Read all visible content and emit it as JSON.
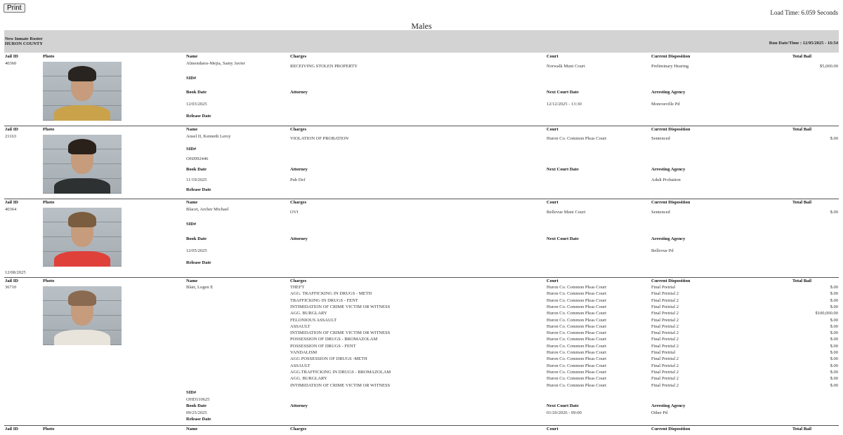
{
  "print_label": "Print",
  "load_time": "Load Time: 6.059 Seconds",
  "title": "Males",
  "band": {
    "line1": "New Inmate Roster",
    "line2": "HURON COUNTY",
    "run_datetime": "Run Date/Time : 12/05/2025 - 16:54"
  },
  "labels": {
    "jail_id": "Jail ID",
    "photo": "Photo",
    "name": "Name",
    "charges": "Charges",
    "court": "Court",
    "disposition": "Current Disposition",
    "total_bail": "Total Bail",
    "sid": "SID#",
    "book_date": "Book Date",
    "attorney": "Attorney",
    "next_court_date": "Next Court Date",
    "arresting_agency": "Arresting Agency",
    "release_date": "Release Date"
  },
  "records": [
    {
      "jail_id": "40360",
      "name": "Almendares-Mejia, Samy Javier",
      "sid": "",
      "book_date": "12/03/2025",
      "attorney": "",
      "next_court_date": "12/12/2025 - 13:30",
      "arresting_agency": "Monroeville Pd",
      "release_date": "",
      "photo": {
        "hair": "#2a2420",
        "shirt": "#c9a24a"
      },
      "charges": [
        {
          "charge": "RECEIVING STOLEN PROPERTY",
          "court": "Norwalk Muni Court",
          "disposition": "Preliminary Hearing",
          "bail": "$5,000.00"
        }
      ]
    },
    {
      "jail_id": "21163",
      "name": "Ansel II, Kenneth Leroy",
      "sid": "OHJ092446",
      "book_date": "11/19/2025",
      "attorney": "Pub Def",
      "next_court_date": "",
      "arresting_agency": "Adult Probation",
      "release_date": "",
      "photo": {
        "hair": "#2b211b",
        "shirt": "#2e3131"
      },
      "charges": [
        {
          "charge": "VIOLATION OF PROBATION",
          "court": "Huron Co. Common Pleas Court",
          "disposition": "Sentenced",
          "bail": "$.00"
        }
      ]
    },
    {
      "jail_id": "40364",
      "name": "Blacet, Archer Michael",
      "sid": "",
      "book_date": "12/05/2025",
      "attorney": "",
      "next_court_date": "",
      "arresting_agency": "Bellevue Pd",
      "release_date": "12/08/2025",
      "photo": {
        "hair": "#7a5c3e",
        "shirt": "#e0403a"
      },
      "charges": [
        {
          "charge": "OVI",
          "court": "Bellevue Muni Court",
          "disposition": "Sentenced",
          "bail": "$.00"
        }
      ]
    },
    {
      "jail_id": "36710",
      "name": "Blair, Logen E",
      "sid": "OHD110625",
      "book_date": "09/25/2025",
      "attorney": "",
      "next_court_date": "01/20/2026 - 09:00",
      "arresting_agency": "Other Pd",
      "release_date": "",
      "photo": {
        "hair": "#8a6a50",
        "shirt": "#e8e4dc"
      },
      "charges": [
        {
          "charge": "THEFT",
          "court": "Huron Co. Common Pleas Court",
          "disposition": "Final Pretrial",
          "bail": "$.00"
        },
        {
          "charge": "AGG. TRAFFICKING IN DRUGS - METH",
          "court": "Huron Co. Common Pleas Court",
          "disposition": "Final Pretrial 2",
          "bail": "$.00"
        },
        {
          "charge": "TRAFFICKING IN DRUGS - FENT",
          "court": "Huron Co. Common Pleas Court",
          "disposition": "Final Pretrial 2",
          "bail": "$.00"
        },
        {
          "charge": "INTIMIDATION OF CRIME VICTIM OR WITNESS",
          "court": "Huron Co. Common Pleas Court",
          "disposition": "Final Pretrial 2",
          "bail": "$.00"
        },
        {
          "charge": "AGG. BURGLARY",
          "court": "Huron Co. Common Pleas Court",
          "disposition": "Final Pretrial 2",
          "bail": "$100,000.00"
        },
        {
          "charge": "FELONIOUS ASSAULT",
          "court": "Huron Co. Common Pleas Court",
          "disposition": "Final Pretrial 2",
          "bail": "$.00"
        },
        {
          "charge": "ASSAULT",
          "court": "Huron Co. Common Pleas Court",
          "disposition": "Final Pretrial 2",
          "bail": "$.00"
        },
        {
          "charge": "INTIMIDATION OF CRIME VICTIM OR WITNESS",
          "court": "Huron Co. Common Pleas Court",
          "disposition": "Final Pretrial 2",
          "bail": "$.00"
        },
        {
          "charge": "POSSESSION OF DRUGS - BROMAZOLAM",
          "court": "Huron Co. Common Pleas Court",
          "disposition": "Final Pretrial 2",
          "bail": "$.00"
        },
        {
          "charge": "POSSESSION OF DRUGS - FENT",
          "court": "Huron Co. Common Pleas Court",
          "disposition": "Final Pretrial 2",
          "bail": "$.00"
        },
        {
          "charge": "VANDALISM",
          "court": "Huron Co. Common Pleas Court",
          "disposition": "Final Pretrial",
          "bail": "$.00"
        },
        {
          "charge": "AGG POSSESSION OF DRUGS -METH",
          "court": "Huron Co. Common Pleas Court",
          "disposition": "Final Pretrial 2",
          "bail": "$.00"
        },
        {
          "charge": "ASSAULT",
          "court": "Huron Co. Common Pleas Court",
          "disposition": "Final Pretrial 2",
          "bail": "$.00"
        },
        {
          "charge": "AGG.TRAFFICKING IN DRUGS - BROMAZOLAM",
          "court": "Huron Co. Common Pleas Court",
          "disposition": "Final Pretrial 2",
          "bail": "$.00"
        },
        {
          "charge": "AGG. BURGLARY",
          "court": "Huron Co. Common Pleas Court",
          "disposition": "Final Pretrial 2",
          "bail": "$.00"
        },
        {
          "charge": "INTIMIDATION OF CRIME VICTIM OR WITNESS",
          "court": "Huron Co. Common Pleas Court",
          "disposition": "Final Pretrial 2",
          "bail": "$.00"
        }
      ]
    }
  ]
}
